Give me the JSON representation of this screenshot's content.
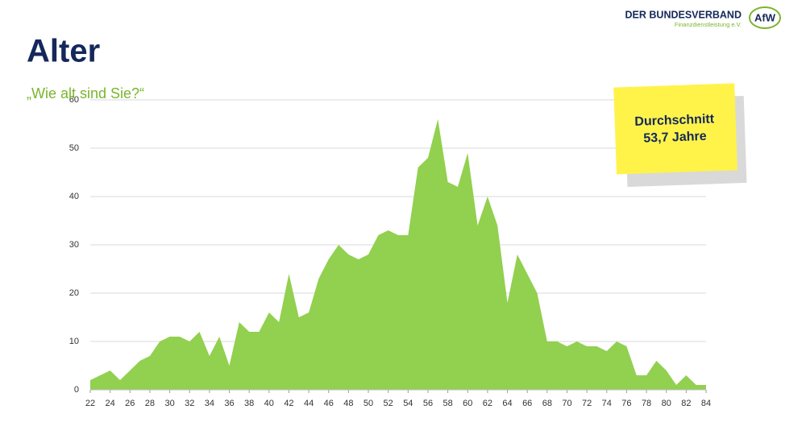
{
  "chart_data": {
    "type": "area",
    "title": "Alter",
    "subtitle": "„Wie alt sind Sie?“",
    "x": [
      22,
      23,
      24,
      25,
      26,
      27,
      28,
      29,
      30,
      31,
      32,
      33,
      34,
      35,
      36,
      37,
      38,
      39,
      40,
      41,
      42,
      43,
      44,
      45,
      46,
      47,
      48,
      49,
      50,
      51,
      52,
      53,
      54,
      55,
      56,
      57,
      58,
      59,
      60,
      61,
      62,
      63,
      64,
      65,
      66,
      67,
      68,
      69,
      70,
      71,
      72,
      73,
      74,
      75,
      76,
      77,
      78,
      79,
      80,
      81,
      82,
      83,
      84
    ],
    "values": [
      2,
      3,
      4,
      2,
      4,
      6,
      7,
      10,
      11,
      11,
      10,
      12,
      7,
      11,
      5,
      14,
      12,
      12,
      16,
      14,
      24,
      15,
      16,
      23,
      27,
      30,
      28,
      27,
      28,
      32,
      33,
      32,
      32,
      46,
      48,
      56,
      43,
      42,
      49,
      34,
      40,
      34,
      18,
      28,
      24,
      20,
      10,
      10,
      9,
      10,
      9,
      9,
      8,
      10,
      9,
      3,
      3,
      6,
      4,
      1,
      3,
      1,
      1
    ],
    "color": "#92d050",
    "xlim": [
      22,
      84
    ],
    "xticks": [
      22,
      24,
      26,
      28,
      30,
      32,
      34,
      36,
      38,
      40,
      42,
      44,
      46,
      48,
      50,
      52,
      54,
      56,
      58,
      60,
      62,
      64,
      66,
      68,
      70,
      72,
      74,
      76,
      78,
      80,
      82,
      84
    ],
    "ylim": [
      0,
      60
    ],
    "yticks": [
      0,
      10,
      20,
      30,
      40,
      50,
      60
    ],
    "grid": true,
    "annotation": {
      "line1": "Durchschnitt",
      "line2": "53,7 Jahre"
    }
  },
  "logo": {
    "name": "DER BUNDESVERBAND",
    "sub": "Finanzdienstleistung e.V.",
    "mark": "AfW"
  }
}
